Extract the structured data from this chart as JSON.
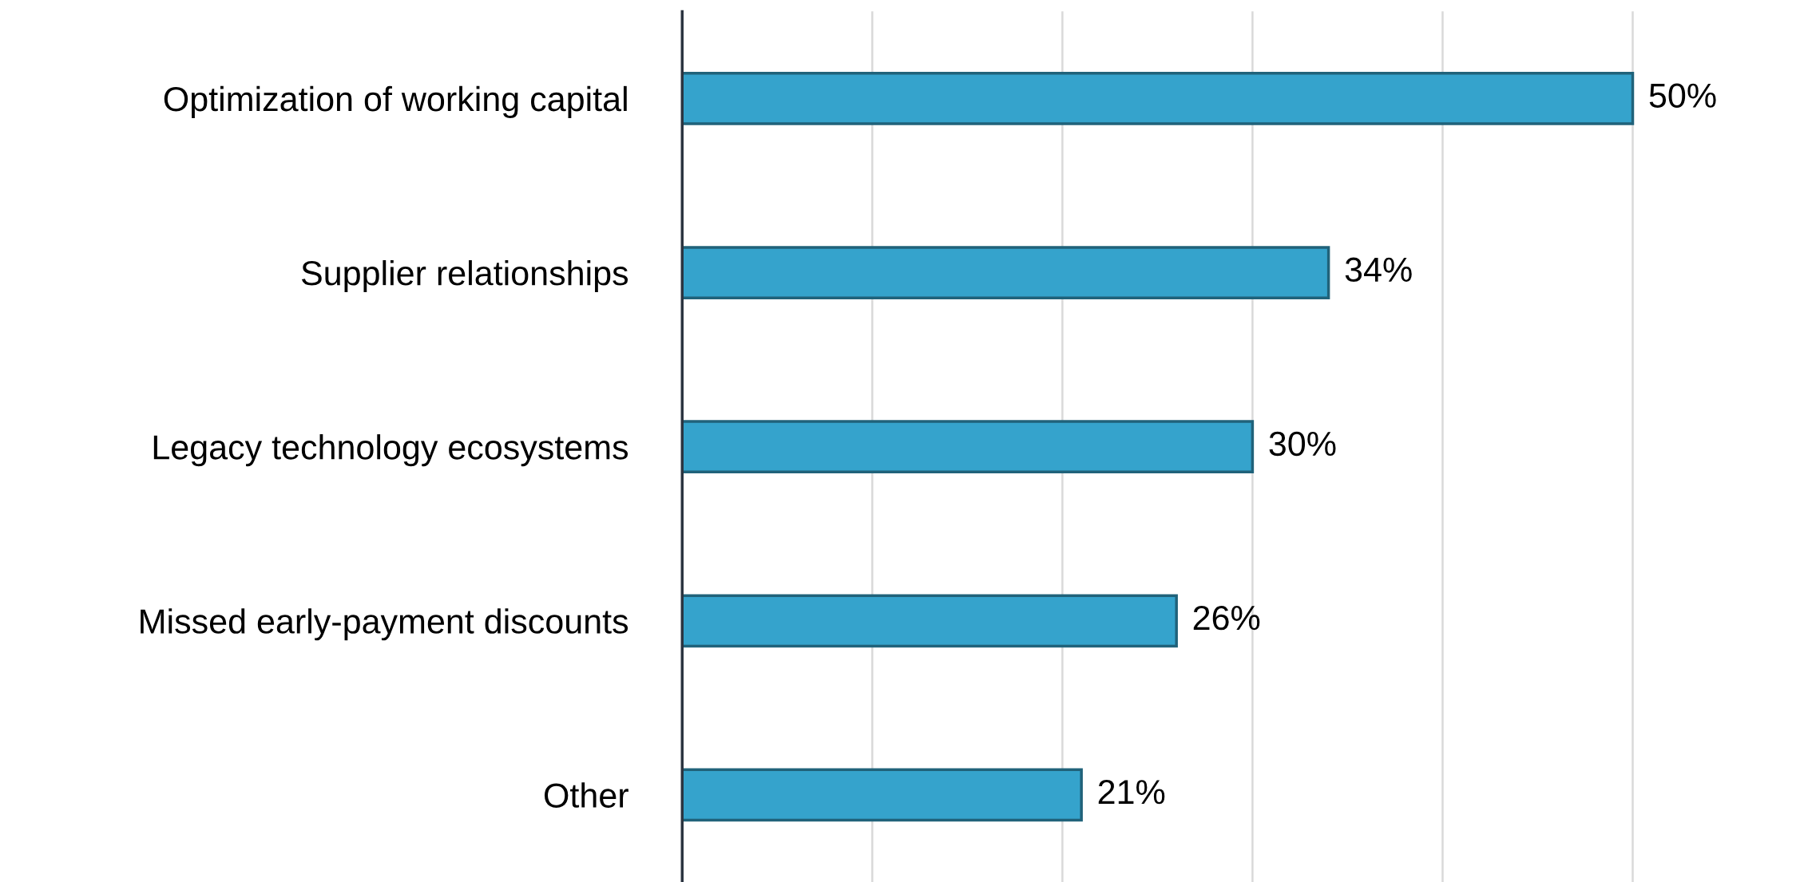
{
  "chart_data": {
    "type": "bar",
    "orientation": "horizontal",
    "categories": [
      "Optimization of working capital",
      "Supplier relationships",
      "Legacy technology ecosystems",
      "Missed early-payment discounts",
      "Other"
    ],
    "values": [
      50,
      34,
      30,
      26,
      21
    ],
    "value_labels": [
      "50%",
      "34%",
      "30%",
      "26%",
      "21%"
    ],
    "color": "#35a3cc",
    "xticks": [
      {
        "value": 0,
        "label": null
      },
      {
        "value": 10,
        "label": null
      },
      {
        "value": 20,
        "label": null
      },
      {
        "value": 30,
        "label": null
      },
      {
        "value": 40,
        "label": null
      },
      {
        "value": 50,
        "label": null
      }
    ],
    "grid": "x",
    "legend": false,
    "tick_labels": "y"
  }
}
